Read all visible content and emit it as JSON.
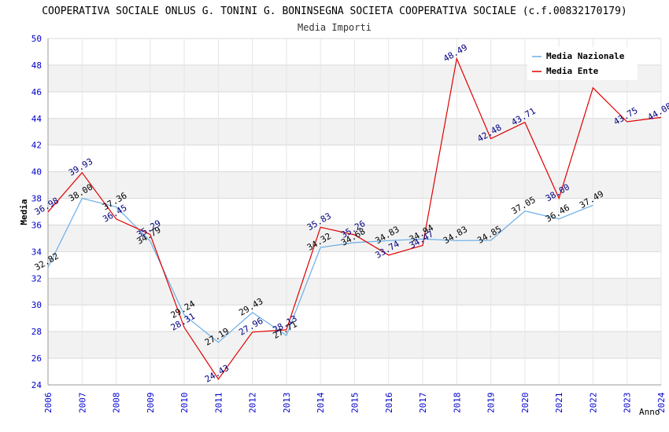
{
  "chart_data": {
    "type": "line",
    "title": "COOPERATIVA SOCIALE ONLUS G. TONINI G. BONINSEGNA SOCIETA COOPERATIVA SOCIALE (c.f.00832170179)",
    "subtitle": "Media Importi",
    "xlabel": "Anno",
    "ylabel": "Media",
    "ylim": [
      24,
      50
    ],
    "y_ticks": [
      24,
      26,
      28,
      30,
      32,
      34,
      36,
      38,
      40,
      42,
      44,
      46,
      48,
      50
    ],
    "x": [
      2006,
      2007,
      2008,
      2009,
      2010,
      2011,
      2012,
      2013,
      2014,
      2015,
      2016,
      2017,
      2018,
      2019,
      2020,
      2021,
      2022,
      2023,
      2024
    ],
    "grid": true,
    "legend_position": "top-right",
    "series": [
      {
        "name": "Media Nazionale",
        "color": "#6aaee6",
        "values": [
          32.82,
          38.0,
          37.36,
          34.79,
          29.24,
          27.19,
          29.43,
          27.71,
          34.32,
          34.68,
          34.83,
          34.94,
          34.83,
          34.85,
          37.05,
          36.46,
          37.49,
          null,
          null
        ],
        "labels": [
          "32.82",
          "38.00",
          "37.36",
          "34.79",
          "29.24",
          "27.19",
          "29.43",
          "27.71",
          "34.32",
          "34.68",
          "34.83",
          "34.94",
          "34.83",
          "34.85",
          "37.05",
          "36.46",
          "37.49",
          "",
          ""
        ]
      },
      {
        "name": "Media Ente",
        "color": "#e00000",
        "values": [
          36.98,
          39.93,
          36.45,
          35.29,
          28.31,
          24.43,
          27.96,
          28.13,
          35.83,
          35.26,
          33.74,
          34.47,
          48.49,
          42.48,
          43.71,
          38.0,
          46.3,
          43.75,
          44.08
        ],
        "labels": [
          "36.98",
          "39.93",
          "36.45",
          "35.29",
          "28.31",
          "24.43",
          "27.96",
          "28.13",
          "35.83",
          "35.26",
          "33.74",
          "34.47",
          "48.49",
          "42.48",
          "43.71",
          "38.00",
          "",
          "43.75",
          "44.08"
        ]
      }
    ]
  }
}
